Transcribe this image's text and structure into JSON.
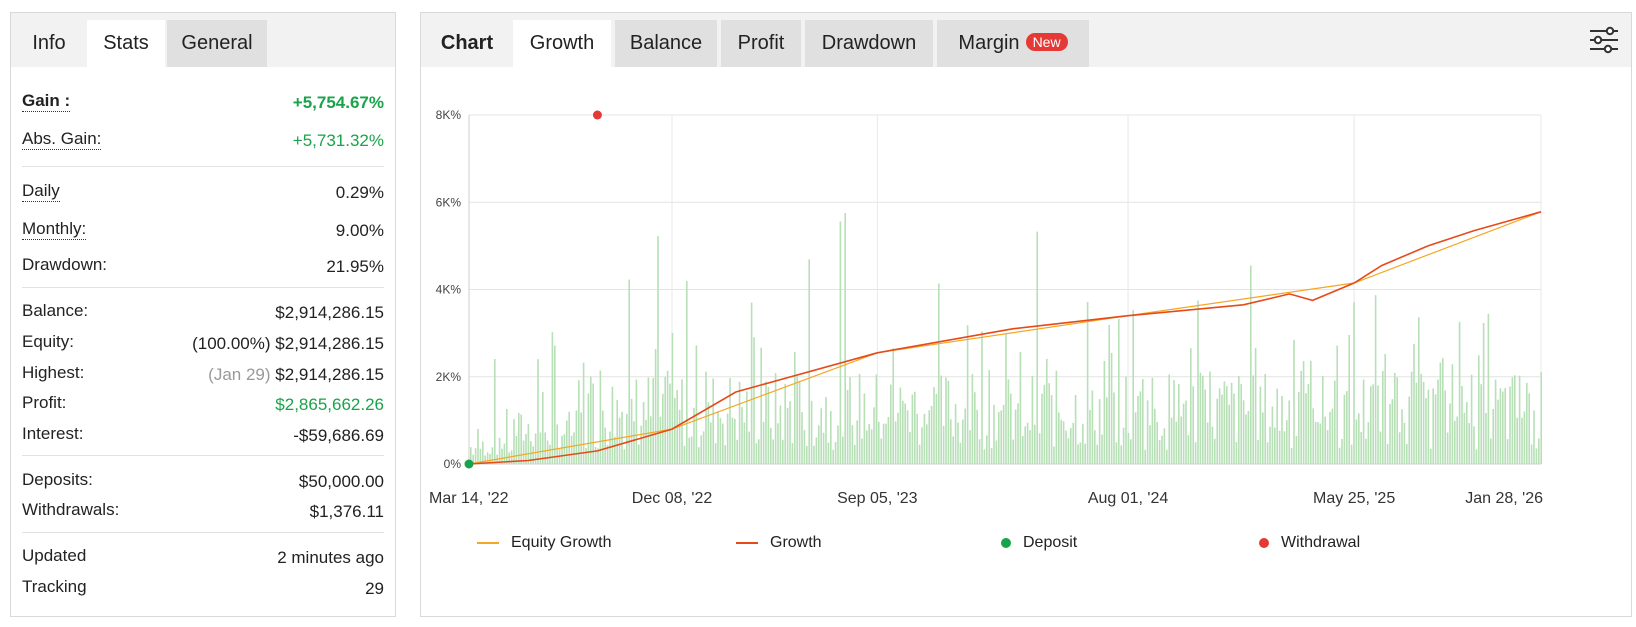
{
  "left_tabs": [
    "Info",
    "Stats",
    "General"
  ],
  "stats": {
    "gain": {
      "label": "Gain :",
      "value": "+5,754.67%"
    },
    "abs_gain": {
      "label": "Abs. Gain:",
      "value": "+5,731.32%"
    },
    "daily": {
      "label": "Daily",
      "value": "0.29%"
    },
    "monthly": {
      "label": "Monthly:",
      "value": "9.00%"
    },
    "drawdown": {
      "label": "Drawdown:",
      "value": "21.95%"
    },
    "balance": {
      "label": "Balance:",
      "value": "$2,914,286.15"
    },
    "equity": {
      "label": "Equity:",
      "prefix": "(100.00%)",
      "value": "$2,914,286.15"
    },
    "highest": {
      "label": "Highest:",
      "prefix": "(Jan 29)",
      "value": "$2,914,286.15"
    },
    "profit": {
      "label": "Profit:",
      "value": "$2,865,662.26"
    },
    "interest": {
      "label": "Interest:",
      "value": "-$59,686.69"
    },
    "deposits": {
      "label": "Deposits:",
      "value": "$50,000.00"
    },
    "withdrawals": {
      "label": "Withdrawals:",
      "value": "$1,376.11"
    },
    "updated": {
      "label": "Updated",
      "value": "2 minutes ago"
    },
    "tracking": {
      "label": "Tracking",
      "value": "29"
    }
  },
  "chart_tabs": {
    "chart": "Chart",
    "growth": "Growth",
    "balance": "Balance",
    "profit": "Profit",
    "drawdown": "Drawdown",
    "margin": "Margin",
    "margin_badge": "New"
  },
  "icons": {
    "settings": "sliders-icon"
  },
  "colors": {
    "gain_green": "#1aa34a",
    "growth_line": "#e64a19",
    "equity_line": "#f5a623",
    "deposit": "#16a34a",
    "withdrawal": "#e53935",
    "bars": "#b7e0b7"
  },
  "chart_data": {
    "type": "line",
    "x_tick_labels": [
      "Mar 14, '22",
      "Dec 08, '22",
      "Sep 05, '23",
      "Aug 01, '24",
      "May 25, '25",
      "Jan 28, '26"
    ],
    "y_tick_labels": [
      "0%",
      "2K%",
      "4K%",
      "6K%",
      "8K%"
    ],
    "ylim": [
      0,
      8000
    ],
    "grid": true,
    "legend_position": "bottom",
    "series": [
      {
        "name": "Growth",
        "x": [
          "Mar 14, '22",
          "Jun 2022",
          "Sep 2022",
          "Dec 08, '22",
          "Mar 2023",
          "Sep 05, '23",
          "Mar 2024",
          "Aug 01, '24",
          "Jan 2025",
          "Mar 2025",
          "Apr 2025",
          "May 25, '25",
          "Jul 2025",
          "Sep 2025",
          "Nov 2025",
          "Jan 28, '26"
        ],
        "values": [
          0,
          80,
          300,
          800,
          1650,
          2550,
          3100,
          3400,
          3650,
          3900,
          3750,
          4150,
          4550,
          5000,
          5350,
          5780
        ]
      },
      {
        "name": "Equity Growth",
        "x": [
          "Mar 14, '22",
          "Dec 08, '22",
          "Sep 05, '23",
          "Aug 01, '24",
          "May 25, '25",
          "Jan 28, '26"
        ],
        "values": [
          0,
          800,
          2550,
          3400,
          4150,
          5780
        ]
      }
    ],
    "events": [
      {
        "name": "Deposit",
        "x": "Mar 14, '22",
        "value": 0
      },
      {
        "name": "Withdrawal",
        "x": "Sep 2022",
        "value": 8000
      }
    ],
    "legend": [
      "Equity Growth",
      "Growth",
      "Deposit",
      "Withdrawal"
    ]
  }
}
